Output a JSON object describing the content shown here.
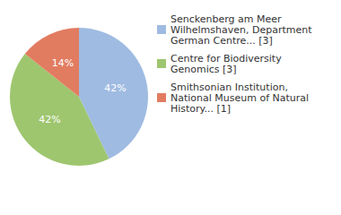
{
  "chart_data": {
    "type": "pie",
    "categories": [
      "Senckenberg am Meer Wilhelmshaven, Department German Centre... [3]",
      "Centre for Biodiversity Genomics [3]",
      "Smithsonian Institution, National Museum of Natural History... [1]"
    ],
    "values": [
      42,
      42,
      14
    ],
    "value_labels": [
      "42%",
      "42%",
      "14%"
    ],
    "colors": [
      "#9fbbe2",
      "#9ec66f",
      "#e27c61"
    ],
    "data_labels": true,
    "legend": "top-right"
  }
}
